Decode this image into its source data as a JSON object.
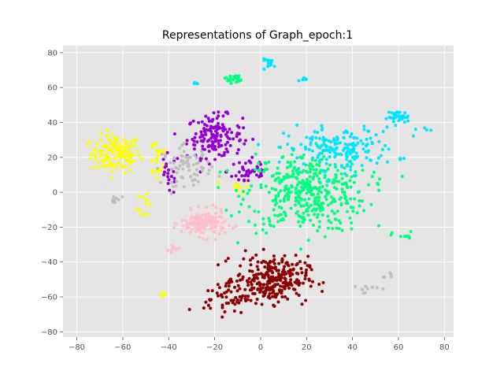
{
  "chart_data": {
    "type": "scatter",
    "title": "Representations of Graph_epoch:1",
    "xlabel": "",
    "ylabel": "",
    "xlim": [
      -86,
      84
    ],
    "ylim": [
      -83,
      84
    ],
    "xticks": [
      -80,
      -60,
      -40,
      -20,
      0,
      20,
      40,
      60,
      80
    ],
    "yticks": [
      -80,
      -60,
      -40,
      -20,
      0,
      20,
      40,
      60,
      80
    ],
    "xtick_labels": [
      "−80",
      "−60",
      "−40",
      "−20",
      "0",
      "20",
      "40",
      "60",
      "80"
    ],
    "ytick_labels": [
      "−80",
      "−60",
      "−40",
      "−20",
      "0",
      "20",
      "40",
      "60",
      "80"
    ],
    "grid": true,
    "legend": "none",
    "style": "ggplot",
    "background": "#e5e5e5",
    "series": [
      {
        "color": "#ffff00",
        "clusters": [
          {
            "center": [
              -63,
              22
            ],
            "spread": [
              9,
              9
            ],
            "count": 130
          },
          {
            "center": [
              -45,
              20
            ],
            "spread": [
              4,
              12
            ],
            "count": 25
          },
          {
            "center": [
              -50,
              -5
            ],
            "spread": [
              3,
              10
            ],
            "count": 12
          },
          {
            "center": [
              -10,
              3
            ],
            "spread": [
              4,
              3
            ],
            "count": 12
          },
          {
            "center": [
              -42,
              -58
            ],
            "spread": [
              2,
              2
            ],
            "count": 4
          }
        ]
      },
      {
        "color": "#9400d3",
        "clusters": [
          {
            "center": [
              -20,
              32
            ],
            "spread": [
              10,
              10
            ],
            "count": 150
          },
          {
            "center": [
              -5,
              12
            ],
            "spread": [
              8,
              8
            ],
            "count": 40
          },
          {
            "center": [
              -40,
              10
            ],
            "spread": [
              4,
              10
            ],
            "count": 20
          }
        ]
      },
      {
        "color": "#00ff7f",
        "clusters": [
          {
            "center": [
              20,
              0
            ],
            "spread": [
              22,
              19
            ],
            "count": 420
          },
          {
            "center": [
              -12,
              65
            ],
            "spread": [
              3,
              2
            ],
            "count": 22
          },
          {
            "center": [
              62,
              -25
            ],
            "spread": [
              4,
              2
            ],
            "count": 10
          }
        ]
      },
      {
        "color": "#00e5ff",
        "clusters": [
          {
            "center": [
              35,
              25
            ],
            "spread": [
              20,
              10
            ],
            "count": 170
          },
          {
            "center": [
              60,
              43
            ],
            "spread": [
              4,
              3
            ],
            "count": 35
          },
          {
            "center": [
              4,
              74
            ],
            "spread": [
              3,
              2
            ],
            "count": 15
          },
          {
            "center": [
              -28,
              62
            ],
            "spread": [
              1,
              1
            ],
            "count": 4
          },
          {
            "center": [
              20,
              65
            ],
            "spread": [
              2,
              1
            ],
            "count": 6
          },
          {
            "center": [
              72,
              36
            ],
            "spread": [
              2,
              1
            ],
            "count": 4
          }
        ]
      },
      {
        "color": "#bebebe",
        "clusters": [
          {
            "center": [
              -32,
              15
            ],
            "spread": [
              9,
              9
            ],
            "count": 70
          },
          {
            "center": [
              -63,
              -5
            ],
            "spread": [
              3,
              3
            ],
            "count": 10
          },
          {
            "center": [
              45,
              -55
            ],
            "spread": [
              5,
              2
            ],
            "count": 10
          },
          {
            "center": [
              55,
              -48
            ],
            "spread": [
              2,
              2
            ],
            "count": 5
          }
        ]
      },
      {
        "color": "#ffc0cb",
        "clusters": [
          {
            "center": [
              -25,
              -18
            ],
            "spread": [
              8,
              6
            ],
            "count": 160
          },
          {
            "center": [
              -38,
              -33
            ],
            "spread": [
              3,
              3
            ],
            "count": 10
          }
        ]
      },
      {
        "color": "#8b0000",
        "clusters": [
          {
            "center": [
              5,
              -50
            ],
            "spread": [
              13,
              11
            ],
            "count": 280
          },
          {
            "center": [
              -15,
              -60
            ],
            "spread": [
              8,
              8
            ],
            "count": 50
          }
        ]
      }
    ]
  }
}
